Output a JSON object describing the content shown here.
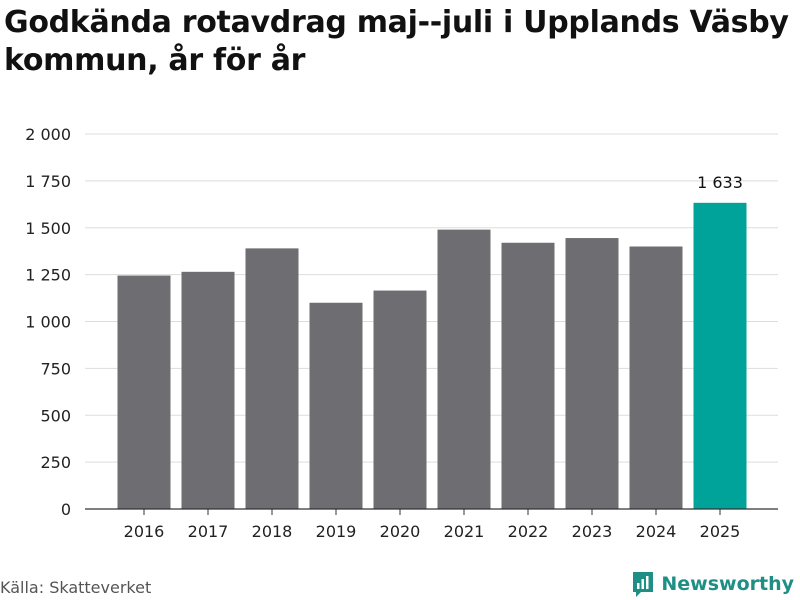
{
  "title": "Godkända rotavdrag maj--juli i Upplands Väsby kommun, år för år",
  "source": "Källa: Skatteverket",
  "brand": {
    "name": "Newsworthy",
    "icon": "newsworthy-logo-icon",
    "color": "#1f8f86"
  },
  "colors": {
    "bar": "#6e6d72",
    "highlight": "#00a39a",
    "grid": "#dddddd",
    "axis": "#333333"
  },
  "chart_data": {
    "type": "bar",
    "title": "Godkända rotavdrag maj--juli i Upplands Väsby kommun, år för år",
    "xlabel": "",
    "ylabel": "",
    "categories": [
      "2016",
      "2017",
      "2018",
      "2019",
      "2020",
      "2021",
      "2022",
      "2023",
      "2024",
      "2025"
    ],
    "values": [
      1245,
      1265,
      1390,
      1100,
      1165,
      1490,
      1420,
      1445,
      1400,
      1633
    ],
    "highlight_index": 9,
    "data_labels": [
      {
        "index": 9,
        "text": "1 633"
      }
    ],
    "ylim": [
      0,
      2000
    ],
    "yticks": [
      {
        "value": 0,
        "label": "0"
      },
      {
        "value": 250,
        "label": "250"
      },
      {
        "value": 500,
        "label": "500"
      },
      {
        "value": 750,
        "label": "750"
      },
      {
        "value": 1000,
        "label": "1 000"
      },
      {
        "value": 1250,
        "label": "1 250"
      },
      {
        "value": 1500,
        "label": "1 500"
      },
      {
        "value": 1750,
        "label": "1 750"
      },
      {
        "value": 2000,
        "label": "2 000"
      }
    ],
    "grid": true,
    "legend": "none"
  }
}
